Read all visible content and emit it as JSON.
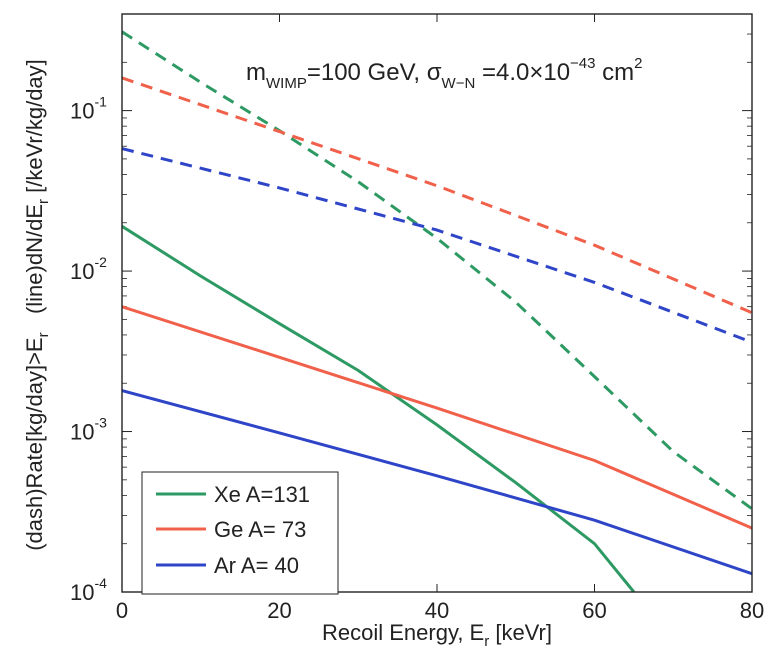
{
  "chart_data": {
    "type": "line",
    "xlabel_main": "Recoil Energy, E",
    "xlabel_sub": "r",
    "xlabel_tail": " [keVr]",
    "ylabel_parts": [
      "(dash)Rate[kg/day]>E",
      "r",
      "   (line)dN/dE",
      "r",
      " [/keVr/kg/day]"
    ],
    "xlim": [
      0,
      80
    ],
    "ylim": [
      0.0001,
      0.4
    ],
    "yscale": "log",
    "x_ticks": [
      0,
      20,
      40,
      60,
      80
    ],
    "x_tick_labels": [
      "0",
      "20",
      "40",
      "60",
      "80"
    ],
    "y_ticks": [
      0.0001,
      0.001,
      0.01,
      0.1
    ],
    "y_tick_labels": [
      {
        "base": "10",
        "exp": "-4"
      },
      {
        "base": "10",
        "exp": "-3"
      },
      {
        "base": "10",
        "exp": "-2"
      },
      {
        "base": "10",
        "exp": "-1"
      }
    ],
    "annotation": {
      "m": "m",
      "m_sub": "WIMP",
      "m_val": "=100 GeV, ",
      "sigma": "σ",
      "sigma_sub": "W−N",
      "sigma_val": " =4.0×10",
      "sigma_exp": "−43",
      "unit": " cm",
      "unit_exp": "2"
    },
    "legend_position": "bottom-left",
    "series": [
      {
        "name": "Xe A=131",
        "color": "#2e9a63",
        "line": {
          "x": [
            0,
            10,
            20,
            30,
            40,
            50,
            60,
            65
          ],
          "y": [
            0.019,
            0.0093,
            0.0047,
            0.0024,
            0.0011,
            0.00048,
            0.0002,
            0.0001
          ]
        },
        "dash": {
          "x": [
            0,
            10,
            20,
            30,
            40,
            50,
            60,
            70,
            80
          ],
          "y": [
            0.31,
            0.15,
            0.075,
            0.036,
            0.016,
            0.0064,
            0.0022,
            0.00075,
            0.00033
          ]
        }
      },
      {
        "name": "Ge A= 73",
        "color": "#f0604a",
        "line": {
          "x": [
            0,
            20,
            40,
            60,
            80
          ],
          "y": [
            0.006,
            0.0029,
            0.0014,
            0.00066,
            0.00025
          ]
        },
        "dash": {
          "x": [
            0,
            20,
            40,
            60,
            80
          ],
          "y": [
            0.16,
            0.074,
            0.034,
            0.0145,
            0.0055
          ]
        }
      },
      {
        "name": "Ar A= 40",
        "color": "#2f45c8",
        "line": {
          "x": [
            0,
            20,
            40,
            60,
            80
          ],
          "y": [
            0.0018,
            0.00098,
            0.00053,
            0.00028,
            0.00013
          ]
        },
        "dash": {
          "x": [
            0,
            20,
            40,
            60,
            80
          ],
          "y": [
            0.058,
            0.033,
            0.018,
            0.0085,
            0.0036
          ]
        }
      }
    ]
  }
}
